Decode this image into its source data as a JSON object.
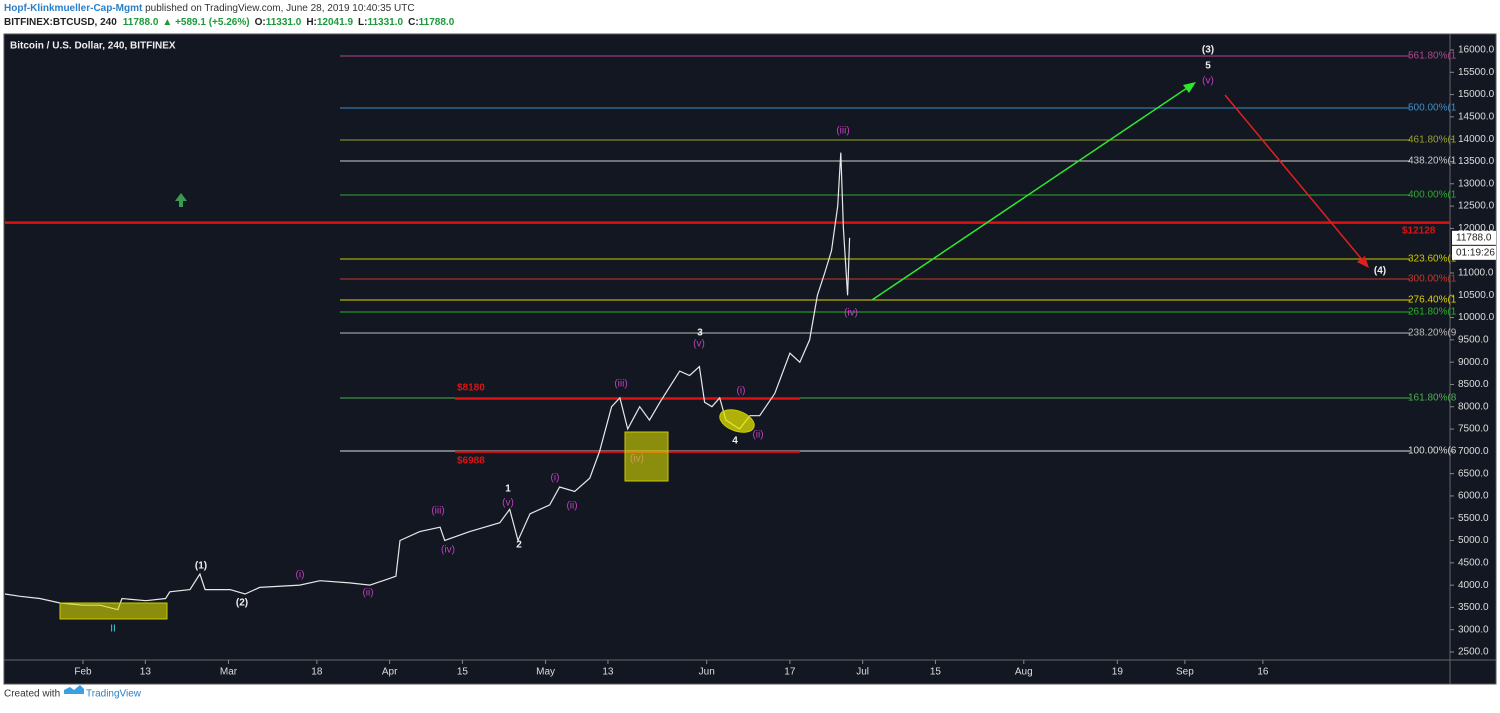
{
  "header": {
    "author": "Hopf-Klinkmueller-Cap-Mgmt",
    "published": " published on TradingView.com, June 28, 2019 10:40:35 UTC",
    "symbol": "BITFINEX:BTCUSD, 240",
    "last": "11788.0",
    "change": "▲ +589.1 (+5.26%)",
    "ohlc": [
      {
        "label": "O:",
        "value": "11331.0"
      },
      {
        "label": "H:",
        "value": "12041.9"
      },
      {
        "label": "L:",
        "value": "11331.0"
      },
      {
        "label": "C:",
        "value": "11788.0"
      }
    ]
  },
  "chart_data": {
    "type": "line",
    "title": "Bitcoin / U.S. Dollar, 240, BITFINEX",
    "color": "#e8e8e8",
    "x": [
      17,
      19.9,
      23.7,
      27.6,
      32,
      35.3,
      38.7,
      39.5,
      44.1,
      47.9,
      48.7,
      52.6,
      54.5,
      55.5,
      60.3,
      63.2,
      66,
      73.7,
      77.6,
      83.3,
      87.2,
      91,
      92.2,
      93,
      96.8,
      100.7,
      101.6,
      106.4,
      112.2,
      114.1,
      115.7,
      118,
      121.8,
      123.7,
      126.6,
      129.5,
      131.4,
      133.7,
      135.3,
      136.8,
      139.1,
      141,
      143,
      146.8,
      148.7,
      150.6,
      151.6,
      153,
      154.5,
      155.7,
      158.3,
      160.3,
      162.2,
      165.1,
      168,
      169.9,
      171.8,
      173.3,
      174.7,
      176,
      177.2,
      177.8,
      178.3,
      179.1,
      179.5
    ],
    "values": [
      3800,
      3750,
      3700,
      3600,
      3550,
      3550,
      3450,
      3700,
      3650,
      3700,
      3850,
      3900,
      4250,
      3900,
      3900,
      3800,
      3950,
      4000,
      4100,
      4050,
      4000,
      4150,
      4200,
      5000,
      5200,
      5300,
      5000,
      5200,
      5400,
      5700,
      5000,
      5600,
      5800,
      6200,
      6100,
      6400,
      7000,
      8000,
      8200,
      7500,
      8000,
      7700,
      8100,
      8800,
      8700,
      8900,
      8100,
      8000,
      8200,
      7700,
      7500,
      7800,
      7800,
      8300,
      9200,
      9000,
      9500,
      10500,
      11000,
      11500,
      12500,
      13700,
      12000,
      10500,
      11788
    ],
    "xlim": [
      17,
      295
    ],
    "ylim": [
      2321,
      16269
    ],
    "xticks": [
      {
        "value": 32,
        "label": "Feb"
      },
      {
        "value": 44,
        "label": "13"
      },
      {
        "value": 60,
        "label": "Mar"
      },
      {
        "value": 77,
        "label": "18"
      },
      {
        "value": 91,
        "label": "Apr"
      },
      {
        "value": 105,
        "label": "15"
      },
      {
        "value": 121,
        "label": "May"
      },
      {
        "value": 133,
        "label": "13"
      },
      {
        "value": 152,
        "label": "Jun"
      },
      {
        "value": 168,
        "label": "17"
      },
      {
        "value": 182,
        "label": "Jul"
      },
      {
        "value": 196,
        "label": "15"
      },
      {
        "value": 213,
        "label": "Aug"
      },
      {
        "value": 231,
        "label": "19"
      },
      {
        "value": 244,
        "label": "Sep"
      },
      {
        "value": 259,
        "label": "16"
      }
    ],
    "yticks": [
      {
        "value": 2500,
        "label": "2500.0"
      },
      {
        "value": 3000,
        "label": "3000.0"
      },
      {
        "value": 3500,
        "label": "3500.0"
      },
      {
        "value": 4000,
        "label": "4000.0"
      },
      {
        "value": 4500,
        "label": "4500.0"
      },
      {
        "value": 5000,
        "label": "5000.0"
      },
      {
        "value": 5500,
        "label": "5500.0"
      },
      {
        "value": 6000,
        "label": "6000.0"
      },
      {
        "value": 6500,
        "label": "6500.0"
      },
      {
        "value": 7000,
        "label": "7000.0"
      },
      {
        "value": 7500,
        "label": "7500.0"
      },
      {
        "value": 8000,
        "label": "8000.0"
      },
      {
        "value": 8500,
        "label": "8500.0"
      },
      {
        "value": 9000,
        "label": "9000.0"
      },
      {
        "value": 9500,
        "label": "9500.0"
      },
      {
        "value": 10000,
        "label": "10000.0"
      },
      {
        "value": 10500,
        "label": "10500.0"
      },
      {
        "value": 11000,
        "label": "11000.0"
      },
      {
        "value": 12000,
        "label": "12000.0"
      },
      {
        "value": 12500,
        "label": "12500.0"
      },
      {
        "value": 13000,
        "label": "13000.0"
      },
      {
        "value": 13500,
        "label": "13500.0"
      },
      {
        "value": 14000,
        "label": "14000.0"
      },
      {
        "value": 14500,
        "label": "14500.0"
      },
      {
        "value": 15000,
        "label": "15000.0"
      },
      {
        "value": 15500,
        "label": "15500.0"
      },
      {
        "value": 16000,
        "label": "16000.0"
      }
    ],
    "last_price": {
      "value": 11788,
      "label": "11788.0"
    },
    "countdown": "01:19:26",
    "fib_levels": [
      {
        "label": "561.80%(1",
        "value": 15865,
        "color": "#b0488a"
      },
      {
        "label": "500.00%(1",
        "value": 14700,
        "color": "#3e8fc9"
      },
      {
        "label": "461.80%(1",
        "value": 13982,
        "color": "#9aa22a"
      },
      {
        "label": "438.20%(1",
        "value": 13510,
        "color": "#cccccc"
      },
      {
        "label": "400.00%(1",
        "value": 12748,
        "color": "#2ea82e"
      },
      {
        "label": "323.60%(1",
        "value": 11313,
        "color": "#c8c800"
      },
      {
        "label": "300.00%(1",
        "value": 10865,
        "color": "#c0392b"
      },
      {
        "label": "276.40%(1",
        "value": 10394,
        "color": "#e0d000"
      },
      {
        "label": "261.80%(1",
        "value": 10125,
        "color": "#27b327"
      },
      {
        "label": "238.20%(9",
        "value": 9654,
        "color": "#bbbbbb"
      },
      {
        "label": "161.80%(8",
        "value": 8196,
        "color": "#4caf50"
      },
      {
        "label": "100.00%(6",
        "value": 7007,
        "color": "#dddddd"
      }
    ],
    "levels": [
      {
        "label": "$12128",
        "value": 12128
      },
      {
        "label": "$8180",
        "value": 8180
      },
      {
        "label": "$6988",
        "value": 6988
      }
    ],
    "annotations": [
      "(3)",
      "5",
      "(v)",
      "(iii)",
      "(4)",
      "(iv)",
      "3",
      "(v)",
      "(iii)",
      "(i)",
      "(ii)",
      "4",
      "(iv)",
      "1",
      "(v)",
      "(i)",
      "(ii)",
      "(iii)",
      "(iv)",
      "2",
      "(1)",
      "(i)",
      "(2)",
      "(ii)",
      "II"
    ]
  },
  "footer": {
    "created": "Created with",
    "brand": "TradingView"
  }
}
